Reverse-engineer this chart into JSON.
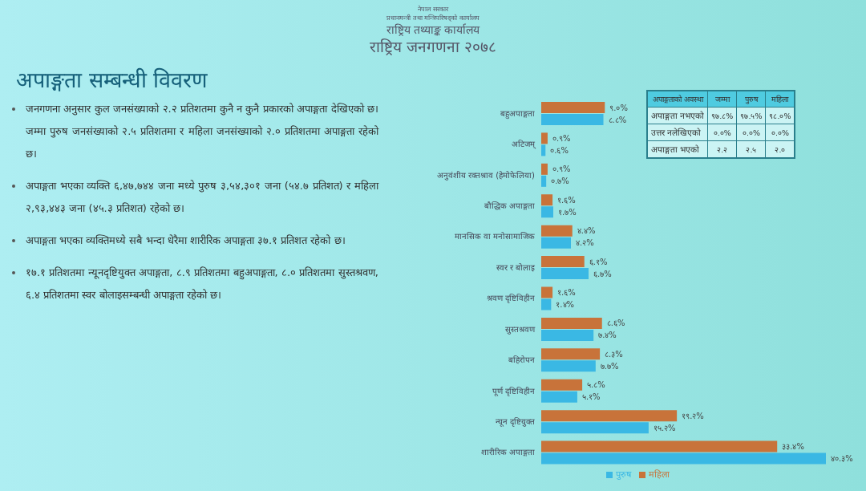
{
  "chart_data": [
    {
      "type": "other",
      "title": "अपाङ्गता सम्बन्धी विवरण",
      "annotations": [
        "जनगणना अनुसार कुल जनसंख्याको २.२ प्रतिशतमा कुनै न कुनै प्रकारको अपाङ्गता देखिएको छ। जम्मा पुरुष जनसंख्याको २.५ प्रतिशतमा र महिला जनसंख्याको २.० प्रतिशतमा अपाङ्गता रहेको छ।",
        "अपाङ्गता भएका व्यक्ति ६,४७,७४४ जना मध्ये पुरुष ३,५४,३०१ जना (५४.७ प्रतिशत) र महिला २,९३,४४३ जना (४५.३ प्रतिशत) रहेको छ।",
        "अपाङ्गता भएका व्यक्तिमध्ये सबै भन्दा धेरैमा शारीरिक अपाङ्गता ३७.१ प्रतिशत रहेको छ।",
        "१७.१ प्रतिशतमा न्यूनदृष्टियुक्त अपाङ्गता, ८.९ प्रतिशतमा बहुअपाङ्गता, ८.० प्रतिशतमा सुस्तश्रवण, ६.४ प्रतिशतमा स्वर बोलाइसम्बन्धी अपाङ्गता रहेको छ।"
      ]
    },
    {
      "type": "bar",
      "orientation": "horizontal",
      "subtitle": "राष्ट्रिय जनगणना २०७८",
      "annotations": [
        "नेपाल सरकार",
        "प्रधानमन्त्री तथा मन्त्रिपरिषद्को कार्यालय",
        "राष्ट्रिय तथ्याङ्क कार्यालय"
      ],
      "categories": [
        "बहुअपाङ्गता",
        "अटिजम्",
        "अनुवंशीय रक्तश्राव (हेमोफेलिया)",
        "बौद्धिक अपाङ्गता",
        "मानसिक वा मनोसामाजिक",
        "स्वर र बोलाइ",
        "श्रवण दृष्टिविहीन",
        "सुस्तश्रवण",
        "बहिरोपन",
        "पूर्ण दृष्टिविहीन",
        "न्यून दृष्टियुक्त",
        "शारीरिक अपाङ्गता"
      ],
      "series": [
        {
          "name": "महिला",
          "color": "#c8733a",
          "values": [
            9.0,
            0.9,
            0.9,
            1.6,
            4.4,
            6.1,
            1.6,
            8.6,
            8.3,
            5.8,
            19.2,
            33.4
          ],
          "value_labels": [
            "९.०%",
            "०.९%",
            "०.९%",
            "१.६%",
            "४.४%",
            "६.१%",
            "१.६%",
            "८.६%",
            "८.३%",
            "५.८%",
            "१९.२%",
            "३३.४%"
          ]
        },
        {
          "name": "पुरुष",
          "color": "#3ab8e4",
          "values": [
            8.8,
            0.6,
            0.7,
            1.7,
            4.2,
            6.7,
            1.4,
            7.4,
            7.7,
            5.1,
            15.2,
            40.3
          ],
          "value_labels": [
            "८.८%",
            "०.६%",
            "०.७%",
            "१.७%",
            "४.२%",
            "६.७%",
            "१.४%",
            "७.४%",
            "७.७%",
            "५.१%",
            "१५.२%",
            "४०.३%"
          ]
        }
      ],
      "legend": "bottom",
      "grid": false
    },
    {
      "type": "other",
      "categories": [
        "अपाङ्गताको अवस्था",
        "जम्मा",
        "पुरुष",
        "महिला"
      ],
      "y_categories": [
        "अपाङ्गता नभएको",
        "उत्तर नलेखिएको",
        "अपाङ्गता भएको"
      ],
      "cell_labels": [
        [
          "९७.८%",
          "९७.५%",
          "९८.०%"
        ],
        [
          "०.०%",
          "०.०%",
          "०.०%"
        ],
        [
          "२.२",
          "२.५",
          "२.०"
        ]
      ]
    }
  ]
}
